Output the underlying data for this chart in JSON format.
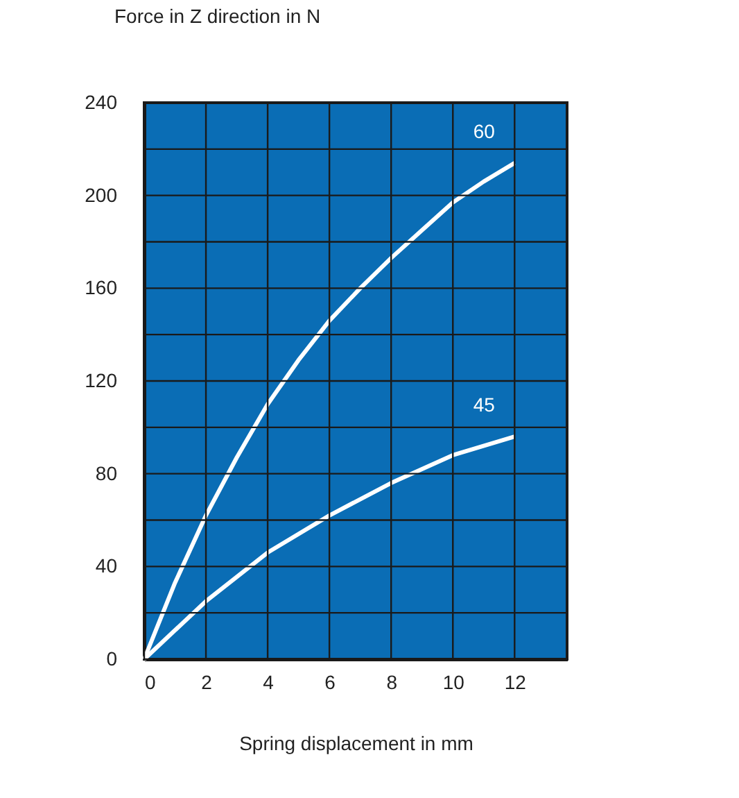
{
  "chart_data": {
    "type": "line",
    "xlabel": "Spring displacement in mm",
    "ylabel": "Force in Z direction in N",
    "x": [
      0,
      1,
      2,
      3,
      4,
      5,
      6,
      7,
      8,
      9,
      10,
      11,
      12
    ],
    "series": [
      {
        "name": "60",
        "color": "#ffffff",
        "values": [
          0,
          33,
          62,
          87,
          110,
          129,
          146,
          160,
          173,
          185,
          197,
          206,
          214
        ]
      },
      {
        "name": "45",
        "color": "#ffffff",
        "x": [
          0,
          2,
          4,
          6,
          8,
          10,
          12
        ],
        "values": [
          0,
          25,
          46,
          62,
          76,
          88,
          96
        ]
      }
    ],
    "xlim": [
      0,
      13.7
    ],
    "ylim": [
      0,
      240
    ],
    "xticks": [
      0,
      2,
      4,
      6,
      8,
      10,
      12
    ],
    "yticks": [
      0,
      {
        "value": 20,
        "label": null
      },
      40,
      {
        "value": 60,
        "label": null
      },
      80,
      {
        "value": 100,
        "label": null
      },
      120,
      {
        "value": 140,
        "label": null
      },
      160,
      {
        "value": 180,
        "label": null
      },
      200,
      {
        "value": 220,
        "label": null
      },
      240
    ],
    "grid": true,
    "legend": false,
    "marker": "none",
    "line_style": "solid"
  }
}
